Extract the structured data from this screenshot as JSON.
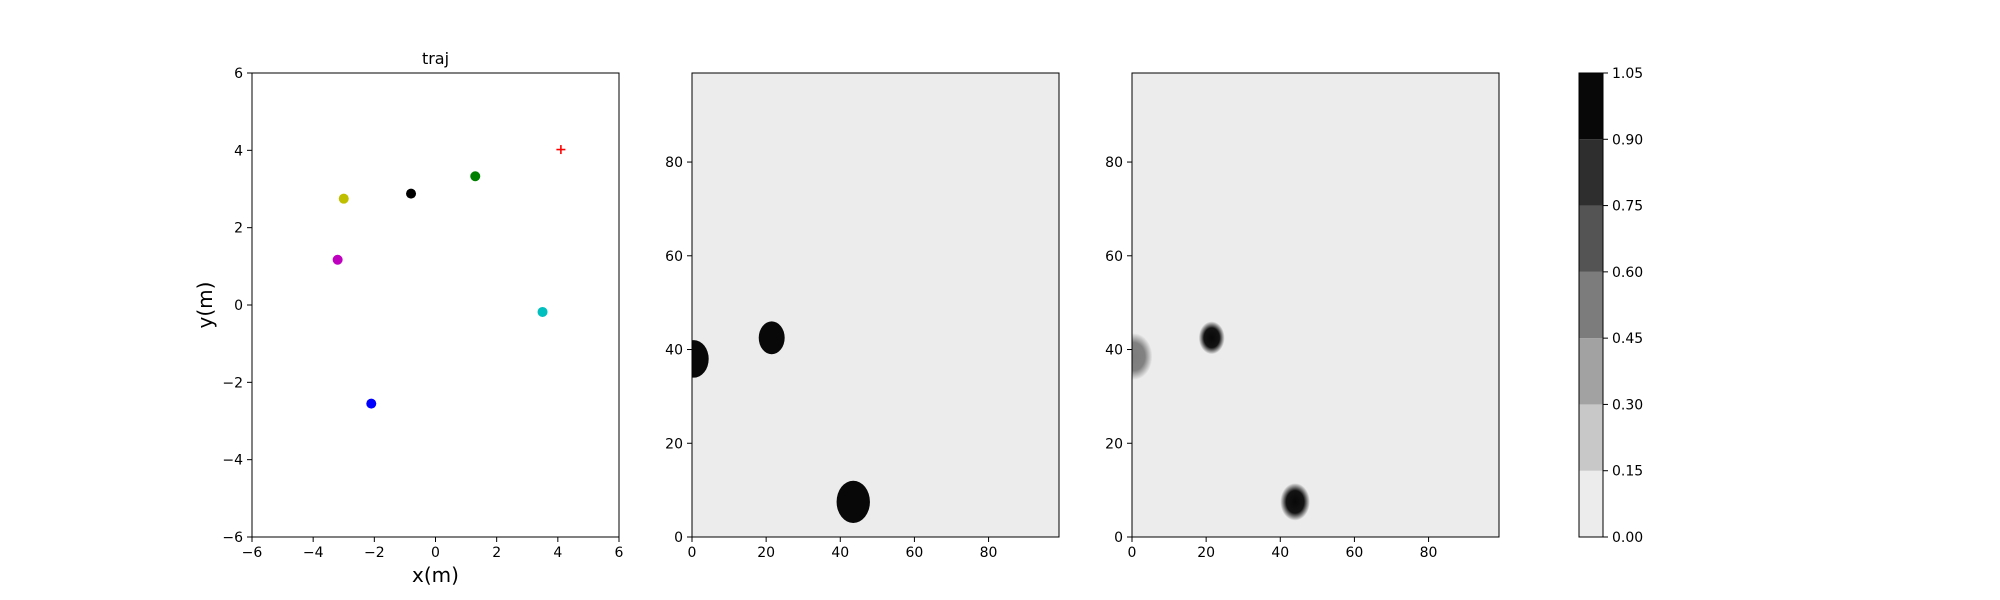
{
  "chart_data": [
    {
      "type": "scatter",
      "title": "traj",
      "xlabel": "x(m)",
      "ylabel": "y(m)",
      "xlim": [
        -6,
        6
      ],
      "ylim": [
        -6,
        6
      ],
      "xticks": [
        -6,
        -4,
        -2,
        0,
        2,
        4,
        6
      ],
      "yticks": [
        -6,
        -4,
        -2,
        0,
        2,
        4,
        6
      ],
      "grid": false,
      "points": [
        {
          "x": -3.0,
          "y": 2.75,
          "color": "#bfbf00",
          "marker": "circle"
        },
        {
          "x": -0.8,
          "y": 2.88,
          "color": "#000000",
          "marker": "circle"
        },
        {
          "x": 1.3,
          "y": 3.33,
          "color": "#008000",
          "marker": "circle"
        },
        {
          "x": -3.2,
          "y": 1.17,
          "color": "#bf00bf",
          "marker": "circle"
        },
        {
          "x": 3.5,
          "y": -0.18,
          "color": "#00bfbf",
          "marker": "circle"
        },
        {
          "x": -2.1,
          "y": -2.55,
          "color": "#0000ff",
          "marker": "circle"
        },
        {
          "x": 4.1,
          "y": 4.02,
          "color": "#ff0000",
          "marker": "plus"
        }
      ]
    },
    {
      "type": "heatmap",
      "xlim": [
        0,
        99
      ],
      "ylim": [
        0,
        99
      ],
      "xticks": [
        0,
        20,
        40,
        60,
        80
      ],
      "yticks": [
        0,
        20,
        40,
        60,
        80
      ],
      "background_value": 0.05,
      "blobs": [
        {
          "x": 0.5,
          "y": 38,
          "r": 4,
          "value": 1.0,
          "edge": "sharp"
        },
        {
          "x": 21.5,
          "y": 42.5,
          "r": 3.5,
          "value": 1.0,
          "edge": "sharp"
        },
        {
          "x": 43.5,
          "y": 7.5,
          "r": 4.5,
          "value": 1.0,
          "edge": "sharp"
        }
      ]
    },
    {
      "type": "heatmap",
      "xlim": [
        0,
        99
      ],
      "ylim": [
        0,
        99
      ],
      "xticks": [
        0,
        20,
        40,
        60,
        80
      ],
      "yticks": [
        0,
        20,
        40,
        60,
        80
      ],
      "background_value": 0.05,
      "blobs": [
        {
          "x": 0.5,
          "y": 38.5,
          "r": 5,
          "value": 0.45,
          "edge": "soft"
        },
        {
          "x": 21.5,
          "y": 42.5,
          "r": 3.5,
          "value": 1.0,
          "edge": "soft"
        },
        {
          "x": 44,
          "y": 7.5,
          "r": 4,
          "value": 1.0,
          "edge": "soft"
        }
      ]
    }
  ],
  "colorbar": {
    "levels": [
      0.0,
      0.15,
      0.3,
      0.45,
      0.6,
      0.75,
      0.9,
      1.05
    ],
    "tick_labels": [
      "0.00",
      "0.15",
      "0.30",
      "0.45",
      "0.60",
      "0.75",
      "0.90",
      "1.05"
    ],
    "colors": [
      "#ececec",
      "#c8c8c8",
      "#a2a2a2",
      "#7c7c7c",
      "#545454",
      "#2e2e2e",
      "#080808"
    ]
  }
}
